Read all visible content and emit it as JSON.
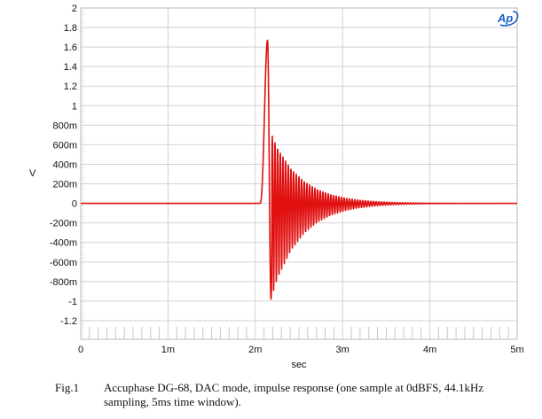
{
  "chart_data": {
    "type": "line",
    "title": "",
    "xlabel": "sec",
    "ylabel": "V",
    "xlim": [
      0,
      0.005
    ],
    "ylim": [
      -1.4,
      2.0
    ],
    "grid": true,
    "x_ticks": [
      "0",
      "1m",
      "2m",
      "3m",
      "4m",
      "5m"
    ],
    "y_ticks": [
      "2",
      "1.8",
      "1.6",
      "1.4",
      "1.2",
      "1",
      "800m",
      "600m",
      "400m",
      "200m",
      "0",
      "-200m",
      "-400m",
      "-600m",
      "-800m",
      "-1",
      "-1.2"
    ],
    "series": [
      {
        "name": "Impulse response",
        "color": "#e01010",
        "description": "Flat at 0 V until ~2.08 ms, positive peak ~1.67 V at ~2.14 ms, negative peak ~-0.98 V at ~2.18 ms, then decaying ringing (~20 kHz) settling near 0 V by ~3.2 ms",
        "key_points": [
          {
            "x": 0.0,
            "y": 0.0
          },
          {
            "x": 0.00205,
            "y": 0.0
          },
          {
            "x": 0.00214,
            "y": 1.67
          },
          {
            "x": 0.00218,
            "y": -0.98
          },
          {
            "x": 0.00221,
            "y": 0.7
          },
          {
            "x": 0.00224,
            "y": -0.61
          },
          {
            "x": 0.00227,
            "y": 0.47
          },
          {
            "x": 0.0023,
            "y": -0.46
          },
          {
            "x": 0.0025,
            "y": 0.2
          },
          {
            "x": 0.0028,
            "y": 0.08
          },
          {
            "x": 0.0032,
            "y": 0.01
          },
          {
            "x": 0.005,
            "y": 0.0
          }
        ],
        "ringing": {
          "onset_ms": 2.19,
          "period_ms": 0.0305,
          "initial_pos_amp": 0.72,
          "initial_neg_amp": 0.62,
          "decay_ms": 0.33
        }
      }
    ],
    "annotations": [
      "Audio Precision logo (top-right)"
    ]
  },
  "caption": {
    "label": "Fig.1",
    "text": "Accuphase DG-68, DAC mode, impulse response (one sample at 0dBFS, 44.1kHz sampling, 5ms time window)."
  },
  "logo": {
    "text": "Ap",
    "color": "#1a5fc8"
  }
}
